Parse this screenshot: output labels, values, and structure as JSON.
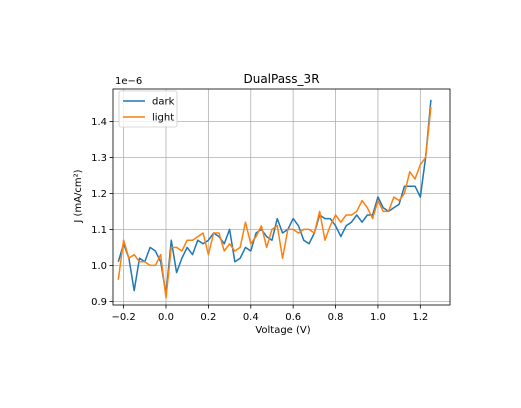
{
  "chart_data": {
    "type": "line",
    "title": "DualPass_3R",
    "xlabel": "Voltage (V)",
    "ylabel": "J (mA/cm²)",
    "y_offset_label": "1e−6",
    "xlim": [
      -0.25,
      1.34
    ],
    "ylim": [
      0.89,
      1.49
    ],
    "x_ticks": [
      -0.2,
      0.0,
      0.2,
      0.4,
      0.6,
      0.8,
      1.0,
      1.2
    ],
    "x_tick_labels": [
      "−0.2",
      "0.0",
      "0.2",
      "0.4",
      "0.6",
      "0.8",
      "1.0",
      "1.2"
    ],
    "y_ticks": [
      0.9,
      1.0,
      1.1,
      1.2,
      1.3,
      1.4
    ],
    "y_tick_labels": [
      "0.9",
      "1.0",
      "1.1",
      "1.2",
      "1.3",
      "1.4"
    ],
    "grid": true,
    "legend_position": "top-left",
    "x": [
      -0.225,
      -0.2,
      -0.175,
      -0.15,
      -0.125,
      -0.1,
      -0.075,
      -0.05,
      -0.025,
      0.0,
      0.025,
      0.05,
      0.075,
      0.1,
      0.125,
      0.15,
      0.175,
      0.2,
      0.225,
      0.25,
      0.275,
      0.3,
      0.325,
      0.35,
      0.375,
      0.4,
      0.425,
      0.45,
      0.475,
      0.5,
      0.525,
      0.55,
      0.575,
      0.6,
      0.625,
      0.65,
      0.675,
      0.7,
      0.725,
      0.75,
      0.775,
      0.8,
      0.825,
      0.85,
      0.875,
      0.9,
      0.925,
      0.95,
      0.975,
      1.0,
      1.025,
      1.05,
      1.075,
      1.1,
      1.125,
      1.15,
      1.175,
      1.2,
      1.225,
      1.25
    ],
    "series": [
      {
        "name": "dark",
        "color": "#1f77b4",
        "values": [
          1.01,
          1.06,
          1.02,
          0.93,
          1.02,
          1.01,
          1.05,
          1.04,
          1.01,
          0.92,
          1.07,
          0.98,
          1.02,
          1.05,
          1.03,
          1.07,
          1.06,
          1.07,
          1.09,
          1.08,
          1.06,
          1.1,
          1.01,
          1.02,
          1.05,
          1.04,
          1.09,
          1.1,
          1.08,
          1.07,
          1.13,
          1.09,
          1.1,
          1.13,
          1.11,
          1.07,
          1.06,
          1.09,
          1.14,
          1.13,
          1.13,
          1.11,
          1.08,
          1.11,
          1.12,
          1.14,
          1.12,
          1.14,
          1.14,
          1.19,
          1.16,
          1.15,
          1.16,
          1.17,
          1.22,
          1.22,
          1.22,
          1.19,
          1.3,
          1.46
        ]
      },
      {
        "name": "light",
        "color": "#ff7f0e",
        "values": [
          0.96,
          1.07,
          1.02,
          1.03,
          1.01,
          1.01,
          1.0,
          1.0,
          1.03,
          0.91,
          1.05,
          1.05,
          1.04,
          1.07,
          1.07,
          1.08,
          1.09,
          1.03,
          1.09,
          1.09,
          1.04,
          1.06,
          1.04,
          1.05,
          1.12,
          1.06,
          1.08,
          1.11,
          1.05,
          1.1,
          1.11,
          1.02,
          1.1,
          1.1,
          1.09,
          1.1,
          1.1,
          1.09,
          1.15,
          1.07,
          1.11,
          1.14,
          1.12,
          1.14,
          1.14,
          1.15,
          1.18,
          1.16,
          1.13,
          1.18,
          1.15,
          1.15,
          1.19,
          1.18,
          1.2,
          1.26,
          1.24,
          1.28,
          1.3,
          1.44
        ]
      }
    ]
  }
}
